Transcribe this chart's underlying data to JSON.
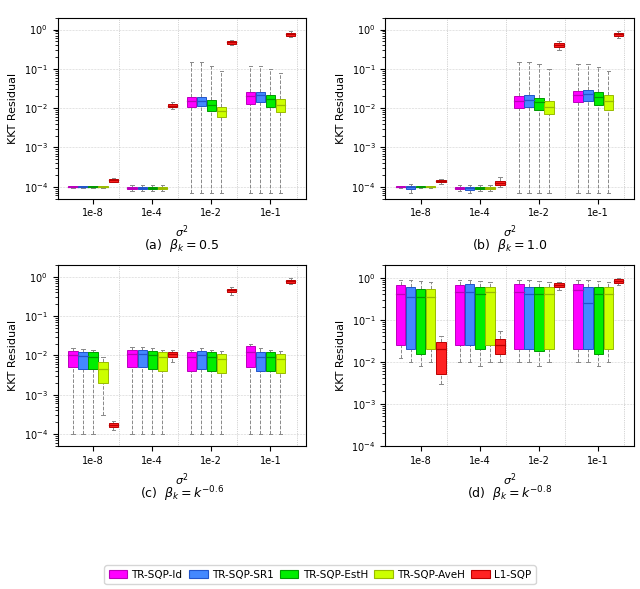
{
  "subplot_titles": [
    "(a)  $\\beta_k = 0.5$",
    "(b)  $\\beta_k = 1.0$",
    "(c)  $\\beta_k = k^{-0.6}$",
    "(d)  $\\beta_k = k^{-0.8}$"
  ],
  "sigma_labels": [
    "1e-8",
    "1e-4",
    "1e-2",
    "1e-1"
  ],
  "methods": [
    "TR-SQP-Id",
    "TR-SQP-SR1",
    "TR-SQP-EstH",
    "TR-SQP-AveH",
    "L1-SQP"
  ],
  "colors": [
    "#FF00FF",
    "#4488FF",
    "#00EE00",
    "#CCFF00",
    "#FF2222"
  ],
  "edge_colors": [
    "#BB00BB",
    "#2255CC",
    "#009900",
    "#99BB00",
    "#BB0000"
  ],
  "ylabel": "KKT Residual",
  "xlabel": "$\\sigma^2$",
  "panel_a": {
    "1e-8": [
      [
        9.5e-05,
        9.8e-05,
        0.0001,
        0.000102,
        0.000105
      ],
      [
        9.5e-05,
        9.8e-05,
        0.0001,
        0.000102,
        0.000105
      ],
      [
        9.5e-05,
        9.8e-05,
        0.0001,
        0.000102,
        0.000105
      ],
      [
        9.5e-05,
        9.8e-05,
        0.0001,
        0.000102,
        0.000105
      ],
      [
        0.00013,
        0.000135,
        0.000145,
        0.000155,
        0.000165
      ]
    ],
    "1e-4": [
      [
        8e-05,
        9e-05,
        9.5e-05,
        0.0001,
        0.00011
      ],
      [
        8e-05,
        9e-05,
        9.5e-05,
        0.0001,
        0.00011
      ],
      [
        8e-05,
        9e-05,
        9.5e-05,
        0.0001,
        0.00011
      ],
      [
        8e-05,
        9e-05,
        9.5e-05,
        0.0001,
        0.00011
      ],
      [
        0.0095,
        0.0105,
        0.0115,
        0.0125,
        0.014
      ]
    ],
    "1e-2": [
      [
        7e-05,
        0.011,
        0.015,
        0.019,
        0.15
      ],
      [
        7e-05,
        0.0115,
        0.0155,
        0.0195,
        0.15
      ],
      [
        7e-05,
        0.0085,
        0.012,
        0.016,
        0.12
      ],
      [
        7e-05,
        0.006,
        0.0085,
        0.011,
        0.09
      ],
      [
        0.4,
        0.43,
        0.47,
        0.5,
        0.55
      ]
    ],
    "1e-1": [
      [
        7e-05,
        0.013,
        0.02,
        0.025,
        0.12
      ],
      [
        7e-05,
        0.014,
        0.021,
        0.026,
        0.12
      ],
      [
        7e-05,
        0.011,
        0.017,
        0.022,
        0.1
      ],
      [
        7e-05,
        0.008,
        0.012,
        0.017,
        0.08
      ],
      [
        0.65,
        0.7,
        0.78,
        0.83,
        0.9
      ]
    ]
  },
  "panel_b": {
    "1e-8": [
      [
        9.5e-05,
        9.8e-05,
        0.0001,
        0.000102,
        0.000105
      ],
      [
        7e-05,
        9e-05,
        9.8e-05,
        0.000105,
        0.00012
      ],
      [
        9.5e-05,
        9.8e-05,
        0.0001,
        0.000102,
        0.000105
      ],
      [
        9.5e-05,
        9.8e-05,
        0.0001,
        0.000102,
        0.000105
      ],
      [
        0.00012,
        0.00013,
        0.00014,
        0.00015,
        0.00016
      ]
    ],
    "1e-4": [
      [
        8e-05,
        9e-05,
        9.5e-05,
        0.0001,
        0.00011
      ],
      [
        7e-05,
        8.5e-05,
        9.5e-05,
        0.0001,
        0.00011
      ],
      [
        8e-05,
        9e-05,
        9.5e-05,
        0.0001,
        0.00011
      ],
      [
        8e-05,
        9e-05,
        9.5e-05,
        0.0001,
        0.00011
      ],
      [
        0.0001,
        0.00011,
        0.000125,
        0.00014,
        0.00018
      ]
    ],
    "1e-2": [
      [
        7e-05,
        0.01,
        0.015,
        0.02,
        0.15
      ],
      [
        7e-05,
        0.011,
        0.016,
        0.021,
        0.15
      ],
      [
        7e-05,
        0.009,
        0.014,
        0.018,
        0.13
      ],
      [
        7e-05,
        0.007,
        0.011,
        0.015,
        0.1
      ],
      [
        0.3,
        0.35,
        0.4,
        0.45,
        0.5
      ]
    ],
    "1e-1": [
      [
        7e-05,
        0.014,
        0.022,
        0.028,
        0.13
      ],
      [
        7e-05,
        0.015,
        0.023,
        0.029,
        0.13
      ],
      [
        7e-05,
        0.012,
        0.019,
        0.025,
        0.11
      ],
      [
        7e-05,
        0.009,
        0.015,
        0.021,
        0.09
      ],
      [
        0.6,
        0.68,
        0.75,
        0.82,
        0.9
      ]
    ]
  },
  "panel_c": {
    "1e-8": [
      [
        0.0001,
        0.005,
        0.0105,
        0.013,
        0.0155
      ],
      [
        0.0001,
        0.0045,
        0.0095,
        0.012,
        0.0145
      ],
      [
        0.0001,
        0.0045,
        0.009,
        0.012,
        0.014
      ],
      [
        0.0003,
        0.002,
        0.0045,
        0.007,
        0.009
      ],
      [
        0.00013,
        0.00015,
        0.00017,
        0.00019,
        0.00022
      ]
    ],
    "1e-4": [
      [
        0.0001,
        0.005,
        0.011,
        0.0135,
        0.016
      ],
      [
        0.0001,
        0.005,
        0.011,
        0.0135,
        0.016
      ],
      [
        0.0001,
        0.0045,
        0.01,
        0.013,
        0.015
      ],
      [
        0.0001,
        0.004,
        0.009,
        0.012,
        0.014
      ],
      [
        0.007,
        0.009,
        0.011,
        0.0125,
        0.014
      ]
    ],
    "1e-2": [
      [
        0.0001,
        0.004,
        0.009,
        0.012,
        0.014
      ],
      [
        0.0001,
        0.0045,
        0.01,
        0.013,
        0.0155
      ],
      [
        0.0001,
        0.004,
        0.009,
        0.012,
        0.0135
      ],
      [
        0.0001,
        0.0035,
        0.008,
        0.011,
        0.013
      ],
      [
        0.35,
        0.4,
        0.45,
        0.5,
        0.55
      ]
    ],
    "1e-1": [
      [
        0.0001,
        0.005,
        0.012,
        0.017,
        0.02
      ],
      [
        0.0001,
        0.004,
        0.009,
        0.012,
        0.015
      ],
      [
        0.0001,
        0.004,
        0.009,
        0.012,
        0.014
      ],
      [
        0.0001,
        0.0035,
        0.008,
        0.011,
        0.013
      ],
      [
        0.65,
        0.7,
        0.78,
        0.85,
        0.95
      ]
    ]
  },
  "panel_d": {
    "1e-8": [
      [
        0.012,
        0.025,
        0.4,
        0.65,
        0.9
      ],
      [
        0.01,
        0.02,
        0.35,
        0.6,
        0.9
      ],
      [
        0.008,
        0.015,
        0.35,
        0.55,
        0.85
      ],
      [
        0.01,
        0.02,
        0.35,
        0.55,
        0.8
      ],
      [
        0.003,
        0.005,
        0.02,
        0.03,
        0.04
      ]
    ],
    "1e-4": [
      [
        0.01,
        0.025,
        0.45,
        0.65,
        0.9
      ],
      [
        0.01,
        0.025,
        0.45,
        0.7,
        0.9
      ],
      [
        0.008,
        0.02,
        0.4,
        0.6,
        0.85
      ],
      [
        0.01,
        0.025,
        0.45,
        0.6,
        0.8
      ],
      [
        0.01,
        0.015,
        0.025,
        0.035,
        0.055
      ]
    ],
    "1e-2": [
      [
        0.01,
        0.02,
        0.45,
        0.7,
        0.9
      ],
      [
        0.01,
        0.02,
        0.4,
        0.6,
        0.9
      ],
      [
        0.008,
        0.018,
        0.4,
        0.6,
        0.85
      ],
      [
        0.01,
        0.02,
        0.4,
        0.6,
        0.8
      ],
      [
        0.5,
        0.6,
        0.68,
        0.75,
        0.8
      ]
    ],
    "1e-1": [
      [
        0.01,
        0.02,
        0.5,
        0.7,
        0.9
      ],
      [
        0.01,
        0.02,
        0.25,
        0.6,
        0.9
      ],
      [
        0.008,
        0.015,
        0.4,
        0.6,
        0.85
      ],
      [
        0.01,
        0.02,
        0.4,
        0.6,
        0.8
      ],
      [
        0.65,
        0.75,
        0.85,
        0.92,
        1.0
      ]
    ]
  }
}
